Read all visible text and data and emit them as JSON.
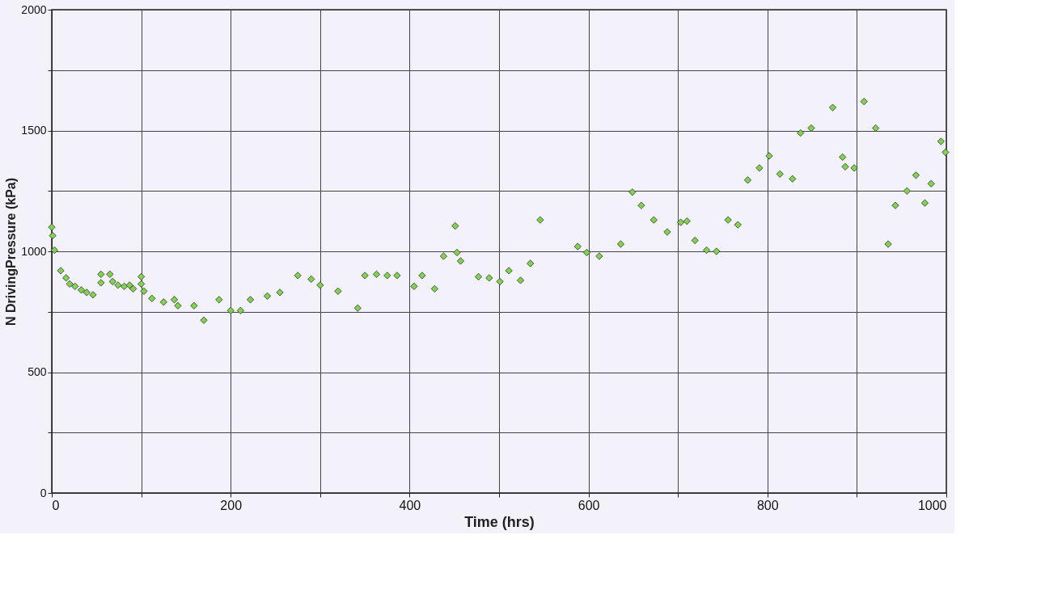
{
  "chart_data": {
    "type": "scatter",
    "xlabel": "Time (hrs)",
    "ylabel": "N    DrivingPressure (kPa)",
    "marker": "diamond",
    "grid": true,
    "xlim": [
      0,
      1000
    ],
    "ylim": [
      0,
      2000
    ],
    "xticks": [
      0,
      {
        "value": 100,
        "label": null
      },
      200,
      {
        "value": 300,
        "label": null
      },
      400,
      {
        "value": 500,
        "label": null
      },
      600,
      {
        "value": 700,
        "label": null
      },
      800,
      {
        "value": 900,
        "label": null
      },
      1000
    ],
    "yticks": [
      0,
      {
        "value": 250,
        "label": null
      },
      500,
      {
        "value": 750,
        "label": null
      },
      1000,
      {
        "value": 1250,
        "label": null
      },
      1500,
      {
        "value": 1750,
        "label": null
      },
      2000
    ],
    "series": [
      {
        "color": "#7fd34e",
        "x": [
          0,
          1,
          3,
          10,
          16,
          20,
          26,
          33,
          39,
          46,
          55,
          55,
          65,
          68,
          74,
          81,
          87,
          91,
          100,
          100,
          103,
          112,
          125,
          137,
          141,
          159,
          170,
          187,
          200,
          211,
          222,
          241,
          255,
          275,
          290,
          300,
          320,
          342,
          350,
          363,
          375,
          386,
          405,
          414,
          428,
          438,
          451,
          453,
          457,
          477,
          489,
          501,
          511,
          524,
          535,
          546,
          588,
          598,
          612,
          636,
          649,
          659,
          673,
          688,
          703,
          710,
          719,
          732,
          743,
          756,
          767,
          778,
          791,
          802,
          814,
          828,
          837,
          849,
          873,
          884,
          887,
          897,
          908,
          921,
          935,
          943,
          956,
          966,
          976,
          983,
          994,
          999
        ],
        "values": [
          1100,
          1065,
          1005,
          920,
          890,
          865,
          855,
          840,
          830,
          820,
          905,
          870,
          905,
          875,
          860,
          855,
          860,
          845,
          895,
          865,
          835,
          805,
          790,
          800,
          775,
          775,
          715,
          800,
          755,
          755,
          800,
          815,
          830,
          900,
          885,
          860,
          835,
          765,
          900,
          905,
          900,
          900,
          855,
          900,
          845,
          980,
          1105,
          995,
          960,
          895,
          890,
          875,
          920,
          880,
          950,
          1130,
          1020,
          995,
          980,
          1030,
          1245,
          1190,
          1130,
          1080,
          1120,
          1125,
          1045,
          1005,
          1000,
          1130,
          1110,
          1295,
          1345,
          1395,
          1320,
          1300,
          1490,
          1510,
          1595,
          1390,
          1350,
          1345,
          1620,
          1510,
          1030,
          1190,
          1250,
          1315,
          1200,
          1280,
          1455,
          1410
        ]
      }
    ]
  }
}
